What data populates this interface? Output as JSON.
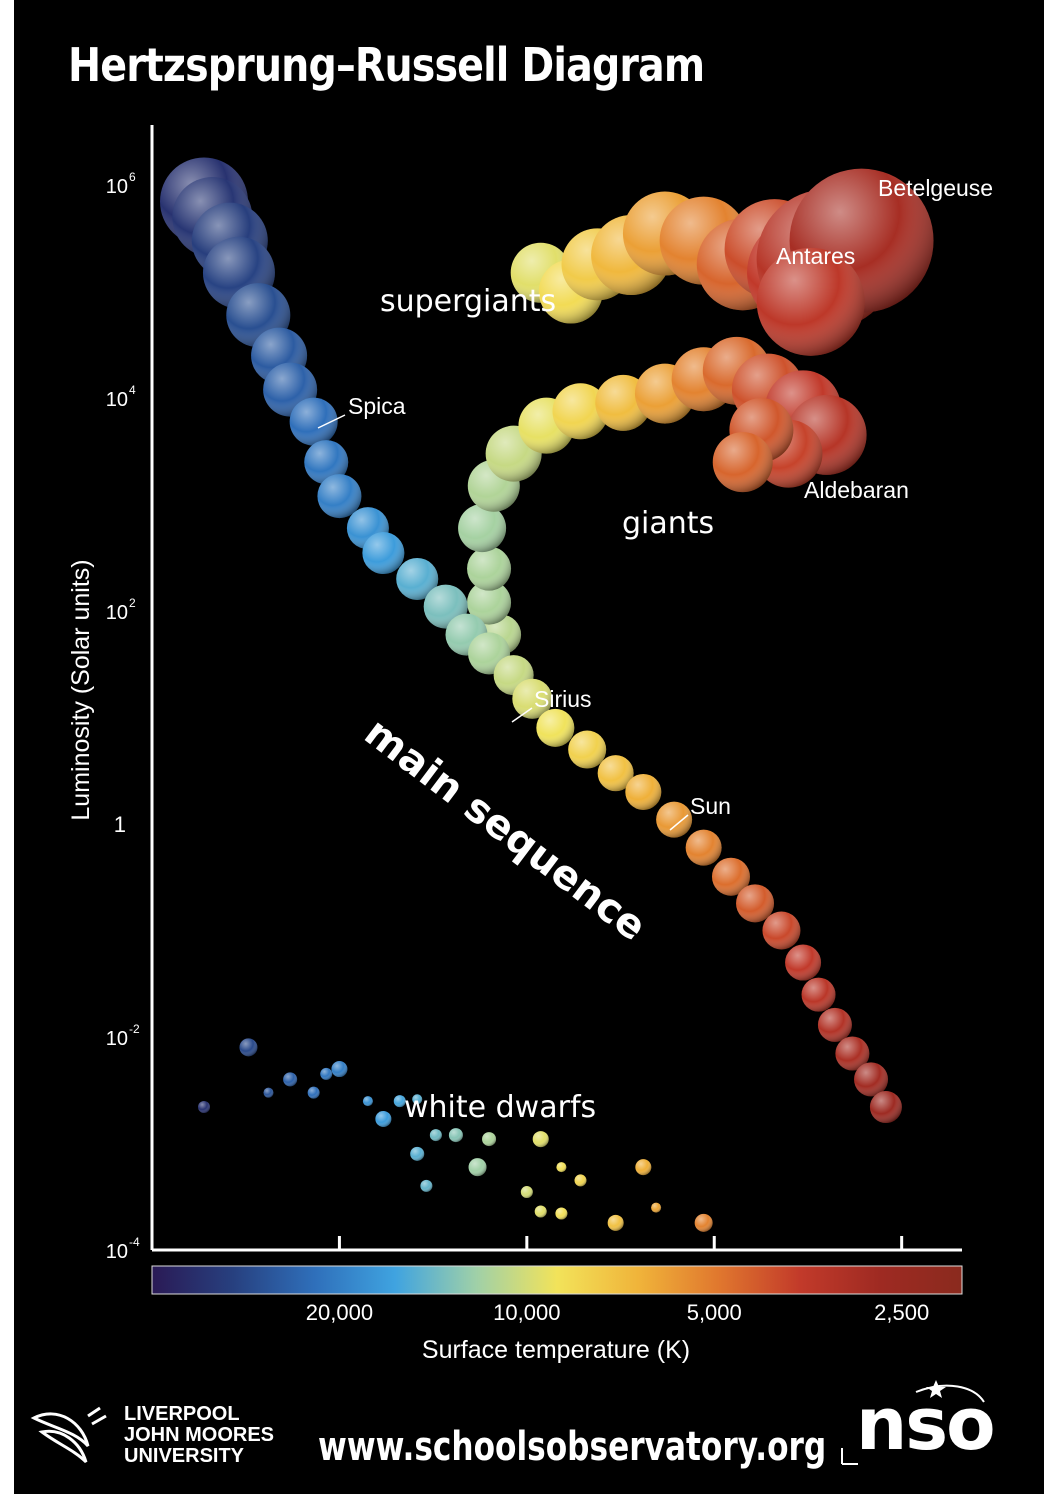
{
  "title": "Hertzsprung–Russell Diagram",
  "footer": {
    "url": "www.schoolsobservatory.org",
    "logo_left_lines": [
      "LIVERPOOL",
      "JOHN MOORES",
      "UNIVERSITY"
    ],
    "logo_right": "nso"
  },
  "chart_data": {
    "type": "scatter",
    "title": "Hertzsprung–Russell Diagram",
    "xlabel": "Surface temperature (K)",
    "ylabel": "Luminosity (Solar units)",
    "x_scale": "log",
    "x_reversed": true,
    "y_scale": "log",
    "xlim": [
      40000,
      2000
    ],
    "ylim": [
      0.0001,
      1000000
    ],
    "x_ticks": [
      {
        "value": 20000,
        "label": "20,000"
      },
      {
        "value": 10000,
        "label": "10,000"
      },
      {
        "value": 5000,
        "label": "5,000"
      },
      {
        "value": 2500,
        "label": "2,500"
      }
    ],
    "y_ticks": [
      {
        "value": 0.0001,
        "base": "10",
        "exp": "-4"
      },
      {
        "value": 0.01,
        "base": "10",
        "exp": "-2"
      },
      {
        "value": 1,
        "base": "1",
        "exp": ""
      },
      {
        "value": 100,
        "base": "10",
        "exp": "2"
      },
      {
        "value": 10000,
        "base": "10",
        "exp": "4"
      },
      {
        "value": 1000000,
        "base": "10",
        "exp": "6"
      }
    ],
    "colorbar": {
      "stops": [
        "#2a1a55",
        "#27407f",
        "#2f6fba",
        "#3fa3e0",
        "#9fd0a8",
        "#f2e35a",
        "#f0b43a",
        "#e0772e",
        "#c23a2a",
        "#9e2a22",
        "#8a2a1e"
      ]
    },
    "groups": [
      {
        "name": "supergiants",
        "label": "supergiants"
      },
      {
        "name": "giants",
        "label": "giants"
      },
      {
        "name": "main sequence",
        "label": "main sequence"
      },
      {
        "name": "white dwarfs",
        "label": "white dwarfs"
      }
    ],
    "labeled_stars": [
      {
        "name": "Betelgeuse",
        "temperature": 3500,
        "luminosity": 126000
      },
      {
        "name": "Antares",
        "temperature": 3600,
        "luminosity": 57000
      },
      {
        "name": "Aldebaran",
        "temperature": 3900,
        "luminosity": 500
      },
      {
        "name": "Spica",
        "temperature": 22000,
        "luminosity": 12000
      },
      {
        "name": "Sirius",
        "temperature": 9900,
        "luminosity": 25
      },
      {
        "name": "Sun",
        "temperature": 5800,
        "luminosity": 1
      }
    ],
    "points": {
      "main_sequence": [
        [
          33000,
          700000,
          44
        ],
        [
          32000,
          500000,
          40
        ],
        [
          30000,
          300000,
          38
        ],
        [
          29000,
          150000,
          36
        ],
        [
          27000,
          60000,
          32
        ],
        [
          25000,
          25000,
          28
        ],
        [
          24000,
          12000,
          27
        ],
        [
          22000,
          6000,
          24
        ],
        [
          21000,
          2500,
          22
        ],
        [
          20000,
          1200,
          22
        ],
        [
          18000,
          600,
          21
        ],
        [
          17000,
          350,
          21
        ],
        [
          15000,
          200,
          21
        ],
        [
          13500,
          110,
          22
        ],
        [
          12500,
          60,
          21
        ],
        [
          11500,
          40,
          21
        ],
        [
          10500,
          25,
          20
        ],
        [
          9800,
          15,
          20
        ],
        [
          9000,
          8,
          19
        ],
        [
          8000,
          5,
          19
        ],
        [
          7200,
          3,
          18
        ],
        [
          6500,
          2,
          18
        ],
        [
          5800,
          1.1,
          18
        ],
        [
          5200,
          0.6,
          18
        ],
        [
          4700,
          0.32,
          19
        ],
        [
          4300,
          0.18,
          19
        ],
        [
          3900,
          0.1,
          19
        ],
        [
          3600,
          0.05,
          18
        ],
        [
          3400,
          0.025,
          17
        ],
        [
          3200,
          0.013,
          17
        ],
        [
          3000,
          0.007,
          17
        ],
        [
          2800,
          0.004,
          17
        ],
        [
          2650,
          0.0022,
          16
        ]
      ],
      "giants": [
        [
          11000,
          60,
          20
        ],
        [
          11500,
          120,
          22
        ],
        [
          11500,
          250,
          22
        ],
        [
          11800,
          600,
          24
        ],
        [
          11300,
          1500,
          26
        ],
        [
          10500,
          3000,
          28
        ],
        [
          9300,
          5500,
          28
        ],
        [
          8200,
          7500,
          28
        ],
        [
          7000,
          9000,
          28
        ],
        [
          6000,
          11000,
          30
        ],
        [
          5200,
          15000,
          32
        ],
        [
          4600,
          18000,
          34
        ],
        [
          4100,
          12000,
          36
        ],
        [
          3600,
          8000,
          38
        ],
        [
          3300,
          4500,
          40
        ],
        [
          3800,
          3000,
          34
        ],
        [
          4200,
          5000,
          32
        ],
        [
          4500,
          2500,
          30
        ]
      ],
      "supergiants": [
        [
          9500,
          150000,
          30
        ],
        [
          8500,
          100000,
          32
        ],
        [
          7700,
          180000,
          36
        ],
        [
          6800,
          220000,
          40
        ],
        [
          6000,
          350000,
          42
        ],
        [
          5200,
          300000,
          44
        ],
        [
          4500,
          180000,
          46
        ],
        [
          4000,
          250000,
          50
        ],
        [
          3600,
          150000,
          56
        ],
        [
          3300,
          200000,
          70
        ],
        [
          2900,
          300000,
          72
        ],
        [
          3500,
          80000,
          54
        ]
      ],
      "white_dwarfs": [
        [
          28000,
          0.008,
          9
        ],
        [
          33000,
          0.0022,
          6
        ],
        [
          24000,
          0.004,
          7
        ],
        [
          21000,
          0.0045,
          6
        ],
        [
          20000,
          0.005,
          8
        ],
        [
          18000,
          0.0025,
          5
        ],
        [
          16000,
          0.0025,
          6
        ],
        [
          15000,
          0.0026,
          5
        ],
        [
          14000,
          0.0012,
          6
        ],
        [
          13000,
          0.0012,
          7
        ],
        [
          11500,
          0.0011,
          7
        ],
        [
          9500,
          0.0011,
          8
        ],
        [
          8800,
          0.0006,
          5
        ],
        [
          8200,
          0.00045,
          6
        ],
        [
          6500,
          0.0006,
          8
        ],
        [
          6200,
          0.00025,
          5
        ],
        [
          10000,
          0.00035,
          6
        ],
        [
          12000,
          0.0006,
          9
        ],
        [
          15000,
          0.0008,
          7
        ],
        [
          26000,
          0.003,
          5
        ],
        [
          22000,
          0.003,
          6
        ],
        [
          17000,
          0.0017,
          8
        ],
        [
          14500,
          0.0004,
          6
        ],
        [
          9500,
          0.00023,
          6
        ],
        [
          7200,
          0.00018,
          8
        ],
        [
          5200,
          0.00018,
          9
        ],
        [
          8800,
          0.00022,
          6
        ]
      ]
    }
  }
}
